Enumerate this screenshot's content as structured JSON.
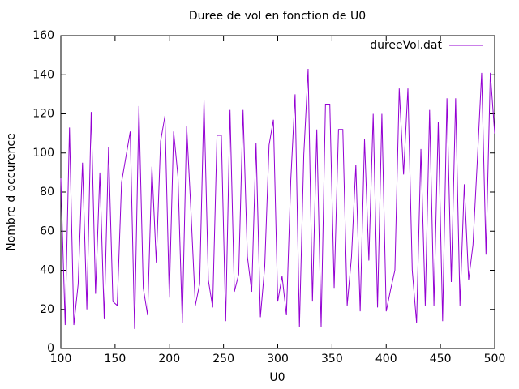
{
  "chart_data": {
    "type": "line",
    "title": "Duree de vol en fonction de U0",
    "xlabel": "U0",
    "ylabel": "Nombre d occurence",
    "x": [
      100,
      104,
      108,
      112,
      116,
      120,
      124,
      128,
      132,
      136,
      140,
      144,
      148,
      152,
      156,
      160,
      164,
      168,
      172,
      176,
      180,
      184,
      188,
      192,
      196,
      200,
      204,
      208,
      212,
      216,
      220,
      224,
      228,
      232,
      236,
      240,
      244,
      248,
      252,
      256,
      260,
      264,
      268,
      272,
      276,
      280,
      284,
      288,
      292,
      296,
      300,
      304,
      308,
      312,
      316,
      320,
      324,
      328,
      332,
      336,
      340,
      344,
      348,
      352,
      356,
      360,
      364,
      368,
      372,
      376,
      380,
      384,
      388,
      392,
      396,
      400,
      404,
      408,
      412,
      416,
      420,
      424,
      428,
      432,
      436,
      440,
      444,
      448,
      452,
      456,
      460,
      464,
      468,
      472,
      476,
      480,
      484,
      488,
      492,
      496,
      500
    ],
    "series": [
      {
        "name": "dureeVol.dat",
        "color": "#9400d3",
        "values": [
          87,
          12,
          113,
          12,
          33,
          95,
          20,
          121,
          28,
          90,
          15,
          103,
          24,
          22,
          85,
          98,
          111,
          10,
          124,
          31,
          17,
          93,
          44,
          106,
          119,
          26,
          111,
          88,
          13,
          114,
          70,
          22,
          33,
          127,
          35,
          21,
          109,
          109,
          14,
          122,
          29,
          38,
          122,
          47,
          29,
          105,
          16,
          42,
          104,
          117,
          24,
          37,
          17,
          86,
          130,
          11,
          99,
          143,
          24,
          112,
          11,
          125,
          125,
          31,
          112,
          112,
          22,
          47,
          94,
          19,
          107,
          45,
          120,
          21,
          120,
          19,
          30,
          40,
          133,
          89,
          133,
          40,
          13,
          102,
          22,
          122,
          22,
          116,
          14,
          128,
          34,
          128,
          22,
          84,
          35,
          53,
          96,
          141,
          48,
          141,
          110
        ]
      }
    ],
    "xlim": [
      100,
      500
    ],
    "xticks": [
      100,
      150,
      200,
      250,
      300,
      350,
      400,
      450,
      500
    ],
    "ylim": [
      0,
      160
    ],
    "yticks": [
      0,
      20,
      40,
      60,
      80,
      100,
      120,
      140,
      160
    ],
    "legend": "top-right",
    "grid": false
  }
}
